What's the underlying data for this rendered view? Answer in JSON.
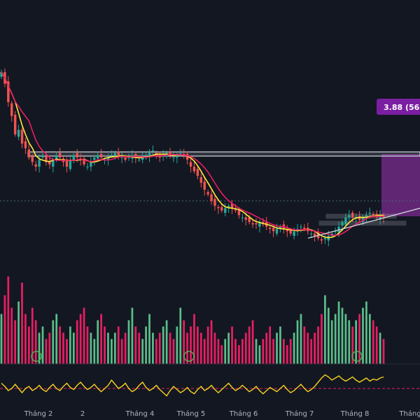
{
  "colors": {
    "background": "#131722",
    "up": "#26a69a",
    "down": "#ef5350",
    "volume_up": "#5bbf8a",
    "volume_down": "#e91e63",
    "ma_fast": "#ffeb3b",
    "ma_slow": "#e91e63",
    "oscillator": "#f5d21f",
    "level": "#d1d4dc",
    "projection": "#7b2c8f",
    "badge": "#7b1fa2",
    "baseline": "#e91e63"
  },
  "badge": {
    "label": "3.88 (56.",
    "ellipsis": "…"
  },
  "chart_data": [
    {
      "type": "candlestick",
      "panel": "price",
      "x_axis": {
        "tick_labels": [
          "Tháng 2",
          "2",
          "Tháng 4",
          "Tháng 5",
          "Tháng 6",
          "Tháng 7",
          "Tháng 8",
          "Tháng"
        ]
      },
      "ohlc_closes": [
        93,
        88,
        80,
        74,
        66,
        68,
        62,
        60,
        56,
        54,
        52,
        55,
        57,
        54,
        53,
        55,
        57,
        56,
        54,
        52,
        55,
        57,
        56,
        55,
        53,
        52,
        54,
        56,
        57,
        56,
        55,
        56,
        57,
        58,
        57,
        56,
        55,
        56,
        57,
        56,
        55,
        56,
        57,
        58,
        59,
        57,
        56,
        57,
        58,
        57,
        56,
        57,
        58,
        57,
        55,
        52,
        50,
        48,
        45,
        42,
        40,
        37,
        35,
        34,
        33,
        34,
        35,
        34,
        33,
        31,
        30,
        29,
        28,
        27,
        27,
        28,
        27,
        26,
        25,
        24,
        25,
        26,
        25,
        24,
        23,
        24,
        25,
        26,
        25,
        24,
        23,
        22,
        21,
        20,
        21,
        22,
        23,
        24,
        26,
        28,
        30,
        31,
        30,
        30,
        29,
        30,
        31,
        32,
        31,
        30,
        31,
        30
      ],
      "moving_averages": [
        {
          "name": "",
          "color": "ma_fast"
        },
        {
          "name": "",
          "color": "ma_slow"
        }
      ],
      "levels": [
        {
          "value": 57.5
        },
        {
          "value": 30.5
        },
        {
          "value": 27.5
        }
      ],
      "projection_label": "3.88 (56."
    },
    {
      "type": "bar",
      "panel": "volume",
      "values": [
        40,
        55,
        70,
        45,
        35,
        50,
        65,
        40,
        30,
        45,
        35,
        25,
        30,
        20,
        25,
        35,
        40,
        30,
        25,
        20,
        30,
        25,
        35,
        40,
        45,
        30,
        25,
        20,
        35,
        40,
        30,
        25,
        20,
        25,
        30,
        20,
        25,
        35,
        45,
        30,
        25,
        20,
        30,
        40,
        25,
        20,
        25,
        30,
        35,
        25,
        20,
        30,
        45,
        35,
        25,
        30,
        40,
        30,
        25,
        20,
        30,
        35,
        25,
        20,
        15,
        20,
        25,
        30,
        20,
        15,
        20,
        25,
        30,
        35,
        20,
        15,
        20,
        25,
        30,
        20,
        25,
        30,
        20,
        15,
        20,
        25,
        35,
        40,
        30,
        25,
        20,
        25,
        30,
        40,
        55,
        45,
        35,
        40,
        50,
        45,
        40,
        35,
        30,
        35,
        40,
        45,
        50,
        40,
        35,
        30,
        25,
        20
      ]
    },
    {
      "type": "line",
      "panel": "oscillator",
      "values": [
        55,
        52,
        48,
        50,
        54,
        50,
        46,
        50,
        52,
        48,
        50,
        53,
        49,
        47,
        51,
        54,
        50,
        48,
        52,
        55,
        51,
        49,
        53,
        56,
        52,
        49,
        51,
        54,
        50,
        47,
        50,
        53,
        58,
        54,
        50,
        52,
        55,
        50,
        47,
        49,
        53,
        56,
        51,
        48,
        50,
        53,
        49,
        46,
        43,
        48,
        52,
        49,
        46,
        48,
        51,
        47,
        45,
        49,
        52,
        48,
        50,
        53,
        49,
        46,
        49,
        52,
        55,
        51,
        48,
        50,
        53,
        50,
        47,
        49,
        52,
        48,
        45,
        48,
        51,
        49,
        47,
        50,
        53,
        49,
        46,
        48,
        51,
        54,
        50,
        47,
        49,
        52,
        56,
        60,
        63,
        61,
        58,
        60,
        62,
        59,
        57,
        59,
        61,
        58,
        56,
        58,
        60,
        57,
        59,
        58,
        60,
        61
      ],
      "baseline": 50
    }
  ]
}
